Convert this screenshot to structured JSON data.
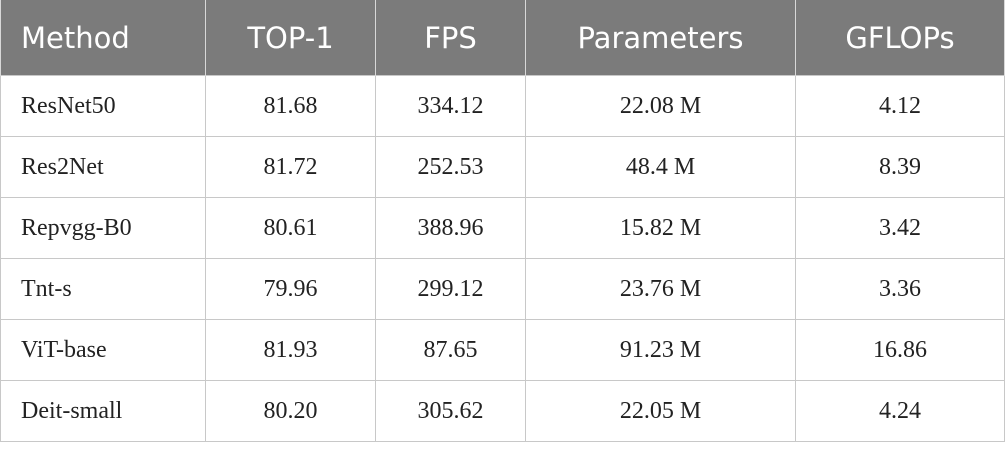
{
  "table": {
    "header": [
      "Method",
      "TOP-1",
      "FPS",
      "Parameters",
      "GFLOPs"
    ],
    "rows": [
      [
        "ResNet50",
        "81.68",
        "334.12",
        "22.08 M",
        "4.12"
      ],
      [
        "Res2Net",
        "81.72",
        "252.53",
        "48.4 M",
        "8.39"
      ],
      [
        "Repvgg-B0",
        "80.61",
        "388.96",
        "15.82 M",
        "3.42"
      ],
      [
        "Tnt-s",
        "79.96",
        "299.12",
        "23.76 M",
        "3.36"
      ],
      [
        "ViT-base",
        "81.93",
        "87.65",
        "91.23 M",
        "16.86"
      ],
      [
        "Deit-small",
        "80.20",
        "305.62",
        "22.05 M",
        "4.24"
      ]
    ]
  }
}
